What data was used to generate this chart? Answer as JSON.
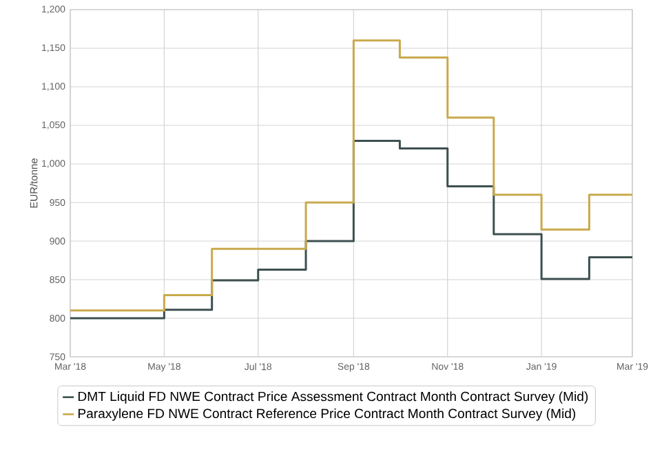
{
  "chart_data": {
    "type": "step",
    "ylabel": "EUR/tonne",
    "x": [
      "2018-03",
      "2018-04",
      "2018-05",
      "2018-06",
      "2018-07",
      "2018-08",
      "2018-09",
      "2018-10",
      "2018-11",
      "2018-12",
      "2019-01",
      "2019-02",
      "2019-03"
    ],
    "series": [
      {
        "name": "DMT Liquid FD NWE Contract Price Assessment Contract Month Contract Survey (Mid)",
        "color": "#3d4f4f",
        "values": [
          800,
          800,
          811,
          849,
          863,
          900,
          1030,
          1020,
          971,
          909,
          851,
          879,
          879
        ]
      },
      {
        "name": "Paraxylene FD NWE Contract Reference Price Contract Month Contract Survey (Mid)",
        "color": "#c9a94c",
        "values": [
          810,
          810,
          830,
          890,
          890,
          950,
          1160,
          1138,
          1060,
          960,
          915,
          960,
          960
        ]
      }
    ],
    "xlim": [
      "2018-03",
      "2019-03"
    ],
    "xticks": [
      {
        "value": "2018-03",
        "label": "Mar '18"
      },
      {
        "value": "2018-05",
        "label": "May '18"
      },
      {
        "value": "2018-07",
        "label": "Jul '18"
      },
      {
        "value": "2018-09",
        "label": "Sep '18"
      },
      {
        "value": "2018-11",
        "label": "Nov '18"
      },
      {
        "value": "2019-01",
        "label": "Jan '19"
      },
      {
        "value": "2019-03",
        "label": "Mar '19"
      }
    ],
    "ylim": [
      750,
      1200
    ],
    "yticks": [
      750,
      800,
      850,
      900,
      950,
      {
        "value": 1000,
        "label": "1,000"
      },
      {
        "value": 1050,
        "label": "1,050"
      },
      {
        "value": 1100,
        "label": "1,100"
      },
      {
        "value": 1150,
        "label": "1,150"
      },
      {
        "value": 1200,
        "label": "1,200"
      }
    ],
    "grid": true,
    "legend": "bottom"
  }
}
